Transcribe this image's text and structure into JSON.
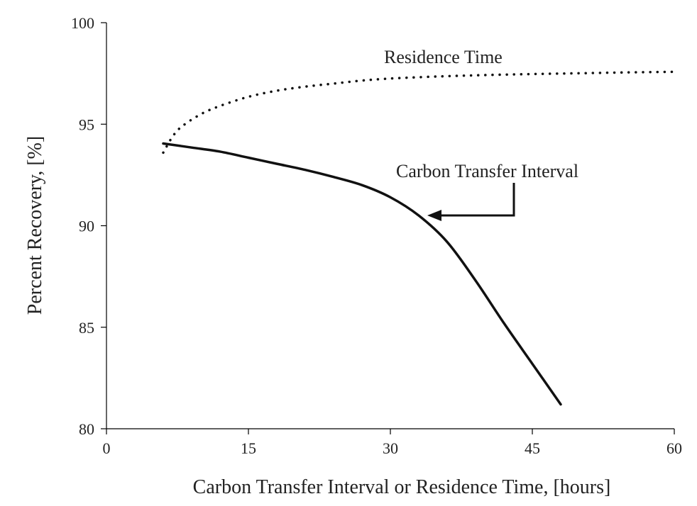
{
  "chart_data": {
    "type": "line",
    "xlabel": "Carbon Transfer Interval or Residence Time, [hours]",
    "ylabel": "Percent Recovery, [%]",
    "xlim": [
      0,
      60
    ],
    "ylim": [
      80,
      100
    ],
    "x_ticks": [
      0,
      15,
      30,
      45,
      60
    ],
    "y_ticks": [
      80,
      85,
      90,
      95,
      100
    ],
    "grid": false,
    "series": [
      {
        "name": "Residence Time",
        "style": "dotted",
        "color": "#111111",
        "x": [
          6,
          7,
          8,
          10,
          12,
          15,
          18,
          21,
          24,
          27,
          30,
          35,
          40,
          45,
          50,
          55,
          60
        ],
        "y": [
          93.6,
          94.4,
          94.9,
          95.5,
          95.9,
          96.35,
          96.65,
          96.85,
          97.0,
          97.15,
          97.25,
          97.35,
          97.42,
          97.47,
          97.51,
          97.55,
          97.58
        ]
      },
      {
        "name": "Carbon Transfer Interval",
        "style": "solid",
        "color": "#111111",
        "x": [
          6,
          9,
          12,
          15,
          18,
          21,
          24,
          27,
          30,
          33,
          36,
          39,
          42,
          45,
          48
        ],
        "y": [
          94.05,
          93.85,
          93.65,
          93.35,
          93.05,
          92.75,
          92.4,
          92.0,
          91.4,
          90.5,
          89.2,
          87.3,
          85.2,
          83.2,
          81.2
        ]
      }
    ],
    "annotations": [
      {
        "text": "Residence Time",
        "series": "Residence Time"
      },
      {
        "text": "Carbon Transfer Interval",
        "series": "Carbon Transfer Interval"
      }
    ]
  }
}
